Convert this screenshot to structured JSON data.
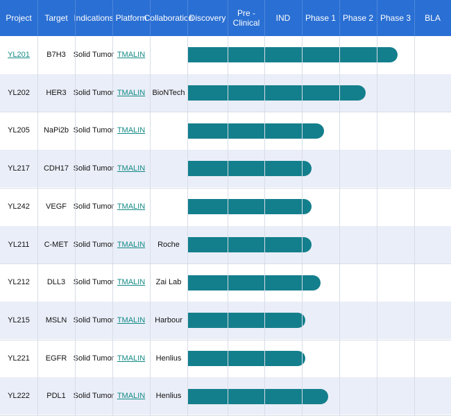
{
  "headers": [
    "Project",
    "Target",
    "Indications",
    "Platform",
    "Collaboration",
    "Discovery",
    "Pre - Clinical",
    "IND",
    "Phase 1",
    "Phase 2",
    "Phase 3",
    "BLA"
  ],
  "rows": [
    {
      "project": "YL201",
      "project_is_link": true,
      "target": "B7H3",
      "indication": "Solid Tumor",
      "platform": "TMALIN",
      "collaboration": "",
      "progress_end": 10.55
    },
    {
      "project": "YL202",
      "project_is_link": false,
      "target": "HER3",
      "indication": "Solid Tumor",
      "platform": "TMALIN",
      "collaboration": "BioNTech",
      "progress_end": 9.7
    },
    {
      "project": "YL205",
      "project_is_link": false,
      "target": "NaPi2b",
      "indication": "Solid Tumor",
      "platform": "TMALIN",
      "collaboration": "",
      "progress_end": 8.6
    },
    {
      "project": "YL217",
      "project_is_link": false,
      "target": "CDH17",
      "indication": "Solid Tumor",
      "platform": "TMALIN",
      "collaboration": "",
      "progress_end": 8.25
    },
    {
      "project": "YL242",
      "project_is_link": false,
      "target": "VEGF",
      "indication": "Solid Tumor",
      "platform": "TMALIN",
      "collaboration": "",
      "progress_end": 8.25
    },
    {
      "project": "YL211",
      "project_is_link": false,
      "target": "C-MET",
      "indication": "Solid Tumor",
      "platform": "TMALIN",
      "collaboration": "Roche",
      "progress_end": 8.25
    },
    {
      "project": "YL212",
      "project_is_link": false,
      "target": "DLL3",
      "indication": "Solid Tumor",
      "platform": "TMALIN",
      "collaboration": "Zai Lab",
      "progress_end": 8.5
    },
    {
      "project": "YL215",
      "project_is_link": false,
      "target": "MSLN",
      "indication": "Solid Tumor",
      "platform": "TMALIN",
      "collaboration": "Harbour",
      "progress_end": 8.1
    },
    {
      "project": "YL221",
      "project_is_link": false,
      "target": "EGFR",
      "indication": "Solid Tumor",
      "platform": "TMALIN",
      "collaboration": "Henlius",
      "progress_end": 8.1
    },
    {
      "project": "YL222",
      "project_is_link": false,
      "target": "PDL1",
      "indication": "Solid Tumor",
      "platform": "TMALIN",
      "collaboration": "Henlius",
      "progress_end": 8.7
    }
  ],
  "colors": {
    "header_bg": "#2a6fd3",
    "row_alt": "#eaeef8",
    "bar": "#147f8c",
    "link": "#138a86"
  }
}
